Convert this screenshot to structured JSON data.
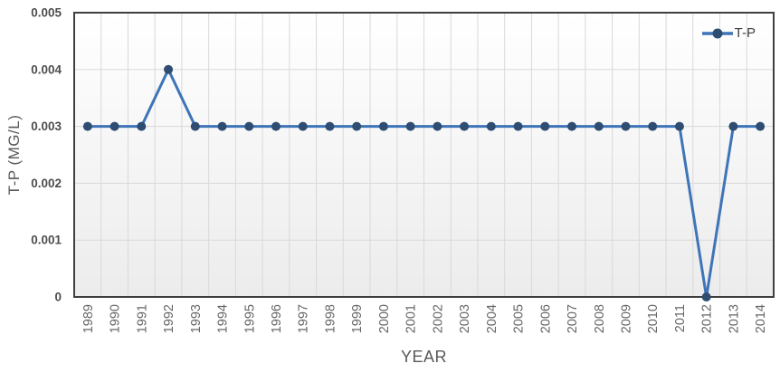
{
  "chart_data": {
    "type": "line",
    "title": "",
    "xlabel": "YEAR",
    "ylabel": "T-P (MG/L)",
    "categories": [
      "1989",
      "1990",
      "1991",
      "1992",
      "1993",
      "1994",
      "1995",
      "1996",
      "1997",
      "1998",
      "1999",
      "2000",
      "2001",
      "2002",
      "2003",
      "2004",
      "2005",
      "2006",
      "2007",
      "2008",
      "2009",
      "2010",
      "2011",
      "2012",
      "2013",
      "2014"
    ],
    "series": [
      {
        "name": "T-P",
        "values": [
          0.003,
          0.003,
          0.003,
          0.004,
          0.003,
          0.003,
          0.003,
          0.003,
          0.003,
          0.003,
          0.003,
          0.003,
          0.003,
          0.003,
          0.003,
          0.003,
          0.003,
          0.003,
          0.003,
          0.003,
          0.003,
          0.003,
          0.003,
          0,
          0.003,
          0.003
        ]
      }
    ],
    "ylim": [
      0,
      0.005
    ],
    "yticks": [
      0,
      0.001,
      0.002,
      0.003,
      0.004,
      0.005
    ],
    "ytick_labels": [
      "0",
      "0.001",
      "0.002",
      "0.003",
      "0.004",
      "0.005"
    ],
    "grid": "both",
    "legend": {
      "position": "top-right",
      "entries": [
        "T-P"
      ]
    },
    "colors": {
      "line": "#3E74B8",
      "marker": "#2E4D71",
      "gridline": "#D9D9D9",
      "plot_border": "#3F3F3F",
      "axis_line": "#9A9A9A",
      "ytick_text": "#4D4D4D",
      "xtick_text": "#666666",
      "axis_title_text": "#595959",
      "legend_text": "#3F3F3F",
      "plot_bg_top": "#FFFFFF",
      "plot_bg_bottom": "#ECECEC"
    }
  }
}
